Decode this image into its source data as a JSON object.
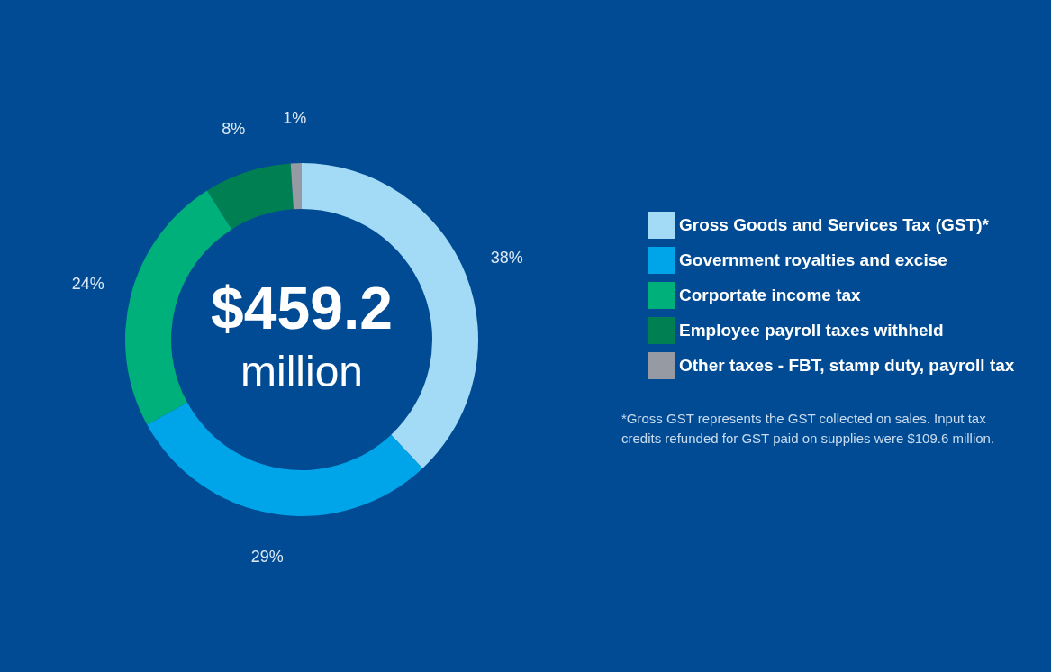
{
  "chart_data": {
    "type": "donut",
    "categories": [
      "Gross Goods and Services Tax (GST)*",
      "Government royalties and excise",
      "Corportate income tax",
      "Employee payroll taxes withheld",
      "Other taxes - FBT, stamp duty, payroll tax"
    ],
    "values": [
      38,
      29,
      24,
      8,
      1
    ],
    "colors": [
      "#a3dbf6",
      "#00a5e9",
      "#00b07a",
      "#007f52",
      "#959aa3"
    ],
    "value_labels": [
      "38%",
      "29%",
      "24%",
      "8%",
      "1%"
    ],
    "legend": "right",
    "annotations": [
      "$459.2",
      "million",
      "*Gross GST represents the GST collected on sales. Input tax credits refunded for GST paid on supplies were $109.6 million."
    ]
  }
}
